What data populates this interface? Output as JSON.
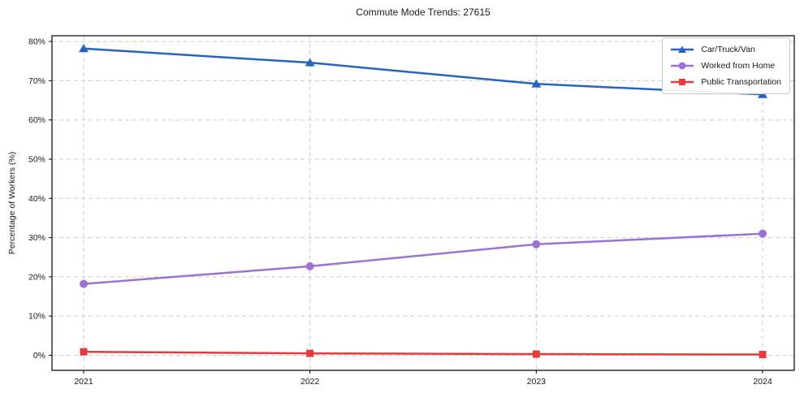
{
  "title": "Commute Mode Trends: 27615",
  "chart_data": {
    "type": "line",
    "title": "Commute Mode Trends: 27615",
    "xlabel": "",
    "ylabel": "Percentage of Workers (%)",
    "x": [
      2021,
      2022,
      2023,
      2024
    ],
    "x_tick_labels": [
      "2021",
      "2022",
      "2023",
      "2024"
    ],
    "ylim": [
      0,
      80
    ],
    "ytick_step": 10,
    "ytick_labels": [
      "0%",
      "10%",
      "20%",
      "30%",
      "40%",
      "50%",
      "60%",
      "70%",
      "80%"
    ],
    "grid": true,
    "grid_style": "dashed",
    "legend_position": "upper right",
    "series": [
      {
        "name": "Car/Truck/Van",
        "marker": "triangle",
        "color": "#2565c0",
        "values": [
          78.2,
          74.6,
          69.2,
          66.5
        ]
      },
      {
        "name": "Worked from Home",
        "marker": "circle",
        "color": "#9c72d4",
        "values": [
          18.2,
          22.7,
          28.3,
          31.0
        ]
      },
      {
        "name": "Public Transportation",
        "marker": "square",
        "color": "#e23c3c",
        "values": [
          0.9,
          0.5,
          0.3,
          0.2
        ]
      }
    ],
    "colors": {
      "grid": "#cccccc",
      "spine": "#000000",
      "text": "#1a1a1a",
      "background": "#ffffff"
    }
  }
}
